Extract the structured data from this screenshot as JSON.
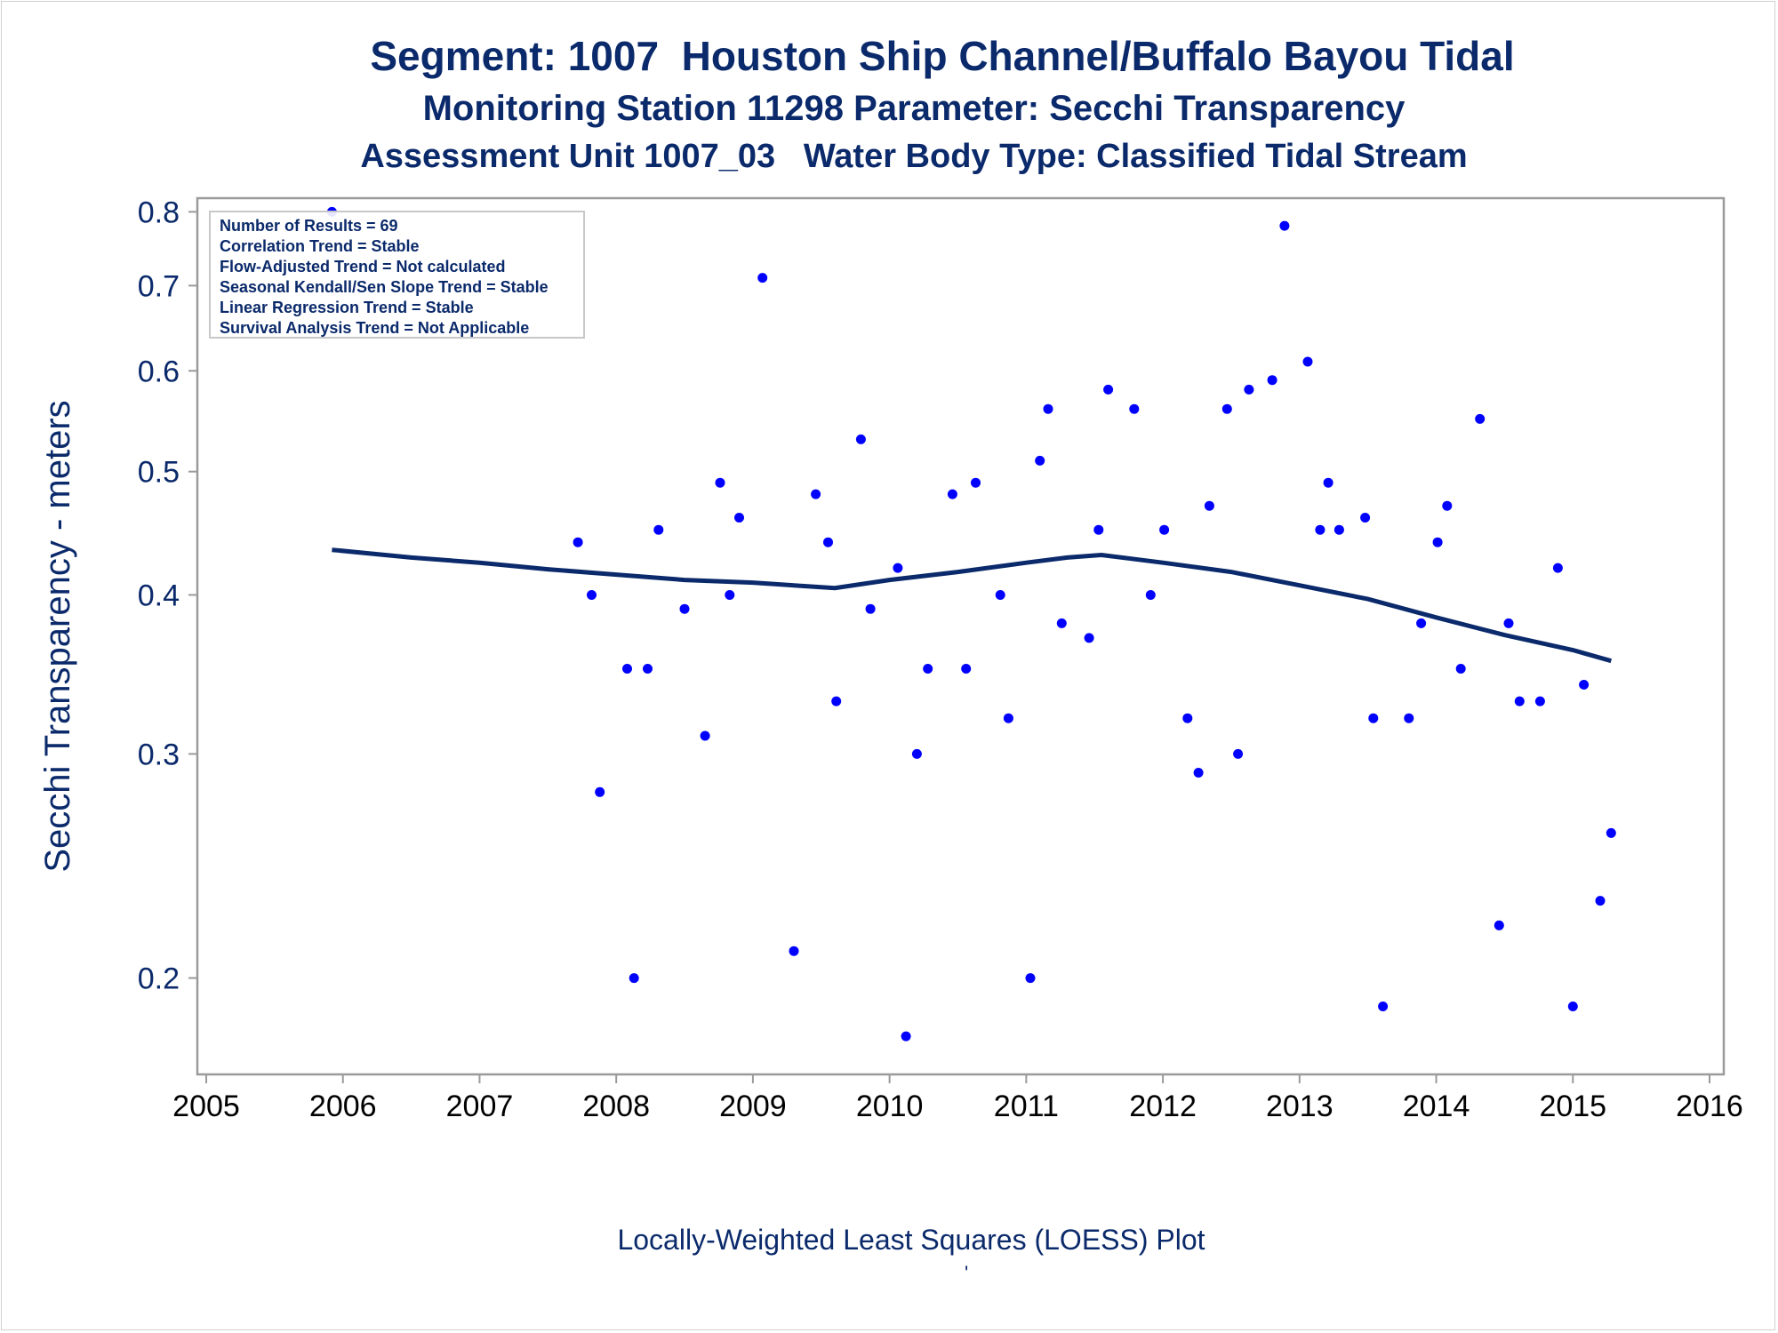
{
  "titles": {
    "line1": "Segment: 1007  Houston Ship Channel/Buffalo Bayou Tidal",
    "line2": "Monitoring Station 11298 Parameter: Secchi Transparency",
    "line3": "Assessment Unit 1007_03   Water Body Type: Classified Tidal Stream"
  },
  "footnote": "Locally-Weighted Least Squares (LOESS) Plot",
  "footnote_mark": "'",
  "colors": {
    "text": "#0b2a6b",
    "points": "#0000ff",
    "loess": "#0b2a6b",
    "axis": "#9a9a9a"
  },
  "chart_data": {
    "type": "scatter",
    "ylabel": "Secchi Transparency - meters",
    "xlabel": "",
    "y_scale": "log",
    "xlim": [
      2005,
      2016
    ],
    "ylim": [
      0.168,
      0.82
    ],
    "x_ticks": [
      "2005",
      "2006",
      "2007",
      "2008",
      "2009",
      "2010",
      "2011",
      "2012",
      "2013",
      "2014",
      "2015",
      "2016"
    ],
    "y_ticks": [
      0.2,
      0.3,
      0.4,
      0.5,
      0.6,
      0.7,
      0.8
    ],
    "y_tick_labels": [
      "0.2",
      "0.3",
      "0.4",
      "0.5",
      "0.6",
      "0.7",
      "0.8"
    ],
    "legend_position": "top-left",
    "stats": [
      "Number of Results = 69",
      "Correlation Trend = Stable",
      "Flow-Adjusted Trend = Not calculated",
      "Seasonal Kendall/Sen Slope Trend = Stable",
      "Linear Regression Trend = Stable",
      "Survival Analysis Trend = Not Applicable"
    ],
    "series": [
      {
        "kind": "points",
        "points": [
          [
            2005.92,
            0.8
          ],
          [
            2007.72,
            0.44
          ],
          [
            2007.82,
            0.4
          ],
          [
            2007.88,
            0.28
          ],
          [
            2008.08,
            0.35
          ],
          [
            2008.13,
            0.2
          ],
          [
            2008.23,
            0.35
          ],
          [
            2008.31,
            0.45
          ],
          [
            2008.5,
            0.39
          ],
          [
            2008.65,
            0.31
          ],
          [
            2008.76,
            0.49
          ],
          [
            2008.83,
            0.4
          ],
          [
            2008.9,
            0.46
          ],
          [
            2009.07,
            0.71
          ],
          [
            2009.3,
            0.21
          ],
          [
            2009.46,
            0.48
          ],
          [
            2009.55,
            0.44
          ],
          [
            2009.61,
            0.33
          ],
          [
            2009.79,
            0.53
          ],
          [
            2009.86,
            0.39
          ],
          [
            2010.06,
            0.42
          ],
          [
            2010.12,
            0.18
          ],
          [
            2010.2,
            0.3
          ],
          [
            2010.28,
            0.35
          ],
          [
            2010.46,
            0.48
          ],
          [
            2010.56,
            0.35
          ],
          [
            2010.63,
            0.49
          ],
          [
            2010.81,
            0.4
          ],
          [
            2010.87,
            0.32
          ],
          [
            2011.03,
            0.2
          ],
          [
            2011.1,
            0.51
          ],
          [
            2011.16,
            0.56
          ],
          [
            2011.26,
            0.38
          ],
          [
            2011.46,
            0.37
          ],
          [
            2011.53,
            0.45
          ],
          [
            2011.6,
            0.58
          ],
          [
            2011.79,
            0.56
          ],
          [
            2011.91,
            0.4
          ],
          [
            2012.01,
            0.45
          ],
          [
            2012.18,
            0.32
          ],
          [
            2012.26,
            0.29
          ],
          [
            2012.34,
            0.47
          ],
          [
            2012.47,
            0.56
          ],
          [
            2012.55,
            0.3
          ],
          [
            2012.63,
            0.58
          ],
          [
            2012.8,
            0.59
          ],
          [
            2012.89,
            0.78
          ],
          [
            2013.06,
            0.61
          ],
          [
            2013.15,
            0.45
          ],
          [
            2013.21,
            0.49
          ],
          [
            2013.29,
            0.45
          ],
          [
            2013.48,
            0.46
          ],
          [
            2013.54,
            0.32
          ],
          [
            2013.61,
            0.19
          ],
          [
            2013.8,
            0.32
          ],
          [
            2013.89,
            0.38
          ],
          [
            2014.01,
            0.44
          ],
          [
            2014.08,
            0.47
          ],
          [
            2014.18,
            0.35
          ],
          [
            2014.32,
            0.55
          ],
          [
            2014.46,
            0.22
          ],
          [
            2014.53,
            0.38
          ],
          [
            2014.61,
            0.33
          ],
          [
            2014.76,
            0.33
          ],
          [
            2014.89,
            0.42
          ],
          [
            2015.0,
            0.19
          ],
          [
            2015.08,
            0.34
          ],
          [
            2015.2,
            0.23
          ],
          [
            2015.28,
            0.26
          ]
        ]
      },
      {
        "kind": "loess",
        "x": [
          2005.92,
          2006.5,
          2007.0,
          2007.5,
          2008.0,
          2008.5,
          2009.0,
          2009.3,
          2009.6,
          2010.0,
          2010.5,
          2011.0,
          2011.3,
          2011.55,
          2012.0,
          2012.5,
          2013.0,
          2013.5,
          2014.0,
          2014.5,
          2015.0,
          2015.28
        ],
        "y": [
          0.434,
          0.428,
          0.424,
          0.419,
          0.415,
          0.411,
          0.409,
          0.407,
          0.405,
          0.411,
          0.417,
          0.424,
          0.428,
          0.43,
          0.424,
          0.417,
          0.407,
          0.397,
          0.384,
          0.372,
          0.362,
          0.355
        ]
      }
    ]
  }
}
